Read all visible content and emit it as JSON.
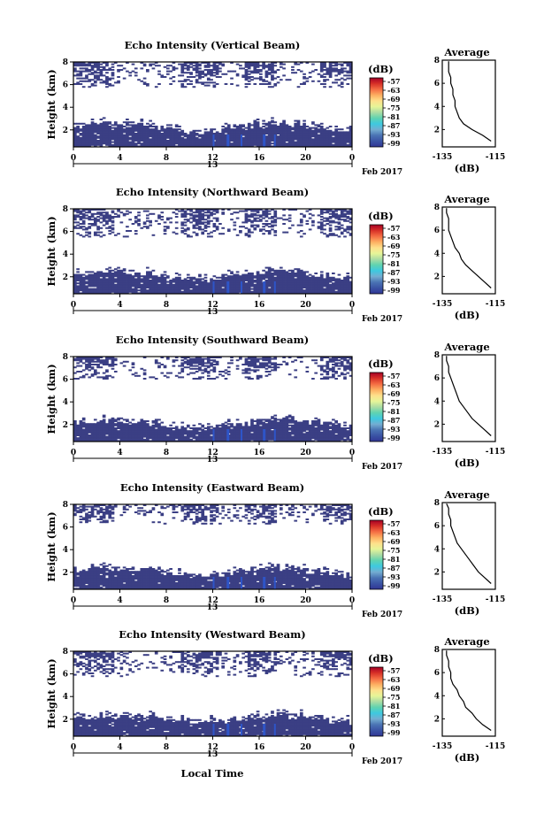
{
  "figure": {
    "xlabel": "Local Time",
    "colorbar_label": "(dB)",
    "colorbar_ticks": [
      "-57",
      "-63",
      "-69",
      "-75",
      "-81",
      "-87",
      "-93",
      "-99"
    ],
    "colorbar_colors": [
      "#313695",
      "#3a53a4",
      "#4a74b4",
      "#74add1",
      "#3ec9e0",
      "#5fd3b0",
      "#abdda4",
      "#e6f598",
      "#fee08b",
      "#fdae61",
      "#f46d43",
      "#d73027",
      "#a50026"
    ],
    "date_label": "Feb 2017",
    "day_label": "13",
    "x_ticks": [
      "0",
      "4",
      "8",
      "12",
      "16",
      "20",
      "0"
    ],
    "y_ticks": [
      "2",
      "4",
      "6",
      "8"
    ],
    "ylabel": "Height (km)",
    "avg_title": "Average",
    "avg_xlabel": "(dB)",
    "avg_x_ticks": [
      "-135",
      "-115"
    ],
    "echo_color": "#3b3f84",
    "strong_echo_color": "#2e55c8"
  },
  "chart_data": [
    {
      "type": "heatmap",
      "title": "Echo Intensity (Vertical Beam)",
      "xlabel": "",
      "ylabel": "Height (km)",
      "xlim": [
        0,
        24
      ],
      "ylim": [
        0.5,
        8
      ],
      "zlim": [
        -99,
        -57
      ],
      "boundary_layer_top_km": 2.2,
      "upper_echo_km": [
        5.8,
        8
      ],
      "average_profile": {
        "title": "Average",
        "xlabel": "(dB)",
        "xlim": [
          -138,
          -113
        ],
        "ylim": [
          0.5,
          8
        ],
        "height_km": [
          1.0,
          1.5,
          2.0,
          2.5,
          3.0,
          3.5,
          4.0,
          4.5,
          5.0,
          5.5,
          6.0,
          6.5,
          7.0,
          7.5,
          7.9
        ],
        "value_db": [
          -115,
          -119,
          -124,
          -128,
          -130,
          -131,
          -132,
          -132,
          -133,
          -133,
          -134,
          -134,
          -135,
          -135,
          -135
        ]
      }
    },
    {
      "type": "heatmap",
      "title": "Echo Intensity (Northward Beam)",
      "xlabel": "",
      "ylabel": "Height (km)",
      "xlim": [
        0,
        24
      ],
      "ylim": [
        0.5,
        8
      ],
      "zlim": [
        -99,
        -57
      ],
      "boundary_layer_top_km": 2.1,
      "upper_echo_km": [
        5.5,
        8
      ],
      "average_profile": {
        "title": "Average",
        "xlabel": "(dB)",
        "xlim": [
          -138,
          -113
        ],
        "ylim": [
          0.5,
          8
        ],
        "height_km": [
          1.0,
          1.5,
          2.0,
          2.5,
          3.0,
          3.5,
          4.0,
          4.5,
          5.0,
          5.5,
          6.0,
          6.5,
          7.0,
          7.5,
          7.9
        ],
        "value_db": [
          -115,
          -118,
          -121,
          -124,
          -127,
          -129,
          -130,
          -132,
          -133,
          -134,
          -135,
          -135,
          -135,
          -136,
          -136
        ]
      }
    },
    {
      "type": "heatmap",
      "title": "Echo Intensity (Southward Beam)",
      "xlabel": "",
      "ylabel": "Height (km)",
      "xlim": [
        0,
        24
      ],
      "ylim": [
        0.5,
        8
      ],
      "zlim": [
        -99,
        -57
      ],
      "boundary_layer_top_km": 2.0,
      "upper_echo_km": [
        6.0,
        8
      ],
      "average_profile": {
        "title": "Average",
        "xlabel": "(dB)",
        "xlim": [
          -138,
          -113
        ],
        "ylim": [
          0.5,
          8
        ],
        "height_km": [
          1.0,
          1.5,
          2.0,
          2.5,
          3.0,
          3.5,
          4.0,
          4.5,
          5.0,
          5.5,
          6.0,
          6.5,
          7.0,
          7.5,
          7.9
        ],
        "value_db": [
          -115,
          -118,
          -121,
          -124,
          -126,
          -128,
          -130,
          -131,
          -132,
          -133,
          -134,
          -135,
          -135,
          -136,
          -136
        ]
      }
    },
    {
      "type": "heatmap",
      "title": "Echo Intensity (Eastward Beam)",
      "xlabel": "",
      "ylabel": "Height (km)",
      "xlim": [
        0,
        24
      ],
      "ylim": [
        0.5,
        8
      ],
      "zlim": [
        -99,
        -57
      ],
      "boundary_layer_top_km": 2.0,
      "upper_echo_km": [
        6.2,
        8
      ],
      "average_profile": {
        "title": "Average",
        "xlabel": "(dB)",
        "xlim": [
          -138,
          -113
        ],
        "ylim": [
          0.5,
          8
        ],
        "height_km": [
          1.0,
          1.5,
          2.0,
          2.5,
          3.0,
          3.5,
          4.0,
          4.5,
          5.0,
          5.5,
          6.0,
          6.5,
          7.0,
          7.5,
          7.9
        ],
        "value_db": [
          -115,
          -118,
          -121,
          -123,
          -125,
          -127,
          -129,
          -131,
          -132,
          -133,
          -134,
          -134,
          -135,
          -135,
          -136
        ]
      }
    },
    {
      "type": "heatmap",
      "title": "Echo Intensity (Westward Beam)",
      "xlabel": "Local Time",
      "ylabel": "Height (km)",
      "xlim": [
        0,
        24
      ],
      "ylim": [
        0.5,
        8
      ],
      "zlim": [
        -99,
        -57
      ],
      "boundary_layer_top_km": 2.0,
      "upper_echo_km": [
        5.8,
        8
      ],
      "average_profile": {
        "title": "Average",
        "xlabel": "(dB)",
        "xlim": [
          -138,
          -113
        ],
        "ylim": [
          0.5,
          8
        ],
        "height_km": [
          1.0,
          1.5,
          2.0,
          2.5,
          3.0,
          3.5,
          4.0,
          4.5,
          5.0,
          5.5,
          6.0,
          6.5,
          7.0,
          7.5,
          7.9
        ],
        "value_db": [
          -115,
          -119,
          -122,
          -124,
          -127,
          -128,
          -130,
          -131,
          -133,
          -134,
          -134,
          -135,
          -135,
          -136,
          -136
        ]
      }
    }
  ]
}
